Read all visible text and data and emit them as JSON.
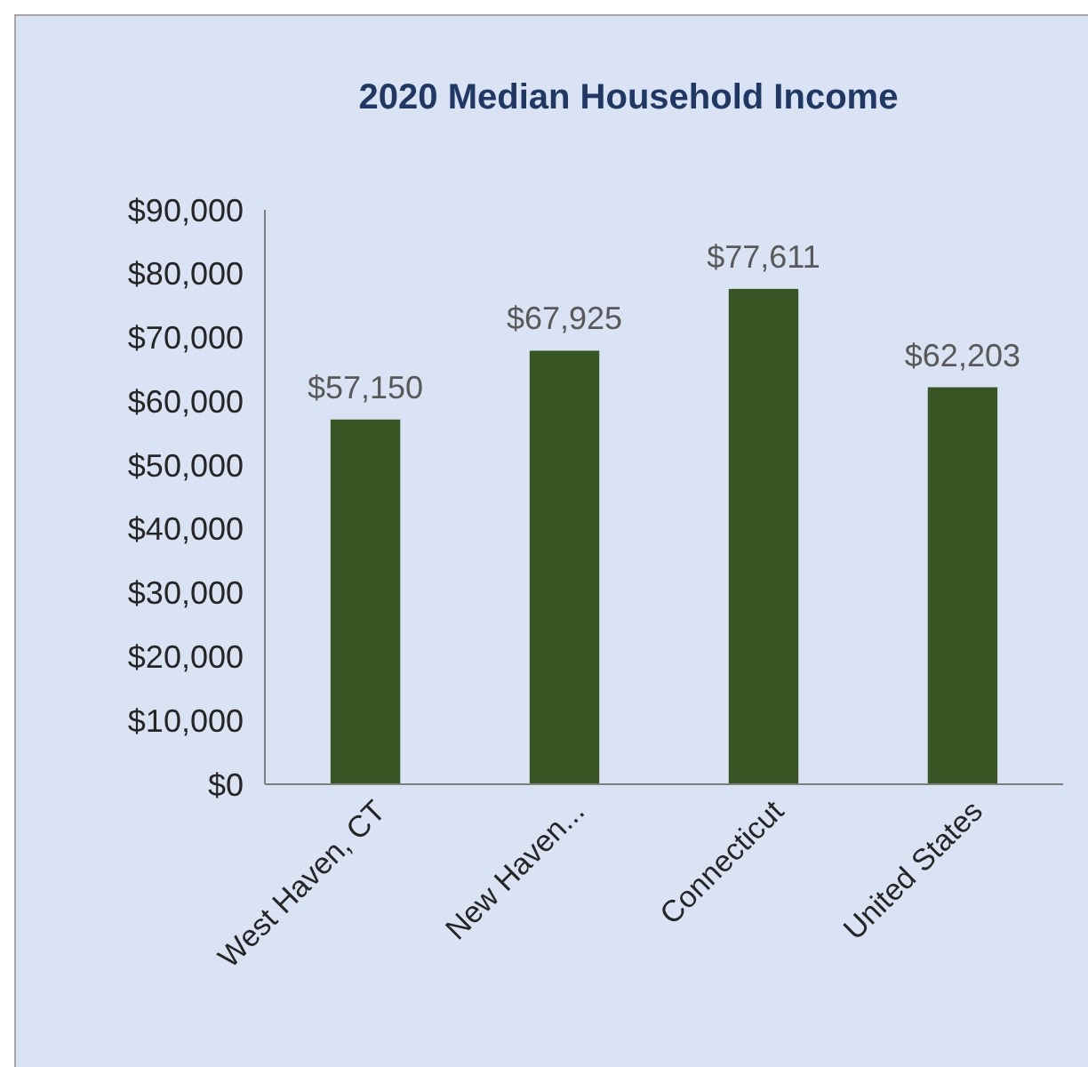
{
  "chart_data": {
    "type": "bar",
    "title": "2020 Median Household Income",
    "categories": [
      "West Haven, CT",
      "New Haven...",
      "Connecticut",
      "United States"
    ],
    "values": [
      57150,
      67925,
      77611,
      62203
    ],
    "color": "#375623",
    "value_labels": [
      "$57,150",
      "$67,925",
      "$77,611",
      "$62,203"
    ],
    "ylim": [
      0,
      90000
    ],
    "yticks": [
      {
        "value": 0,
        "label": "$0"
      },
      {
        "value": 10000,
        "label": "$10,000"
      },
      {
        "value": 20000,
        "label": "$20,000"
      },
      {
        "value": 30000,
        "label": "$30,000"
      },
      {
        "value": 40000,
        "label": "$40,000"
      },
      {
        "value": 50000,
        "label": "$50,000"
      },
      {
        "value": 60000,
        "label": "$60,000"
      },
      {
        "value": 70000,
        "label": "$70,000"
      },
      {
        "value": 80000,
        "label": "$80,000"
      },
      {
        "value": 90000,
        "label": "$90,000"
      }
    ],
    "grid": false
  }
}
